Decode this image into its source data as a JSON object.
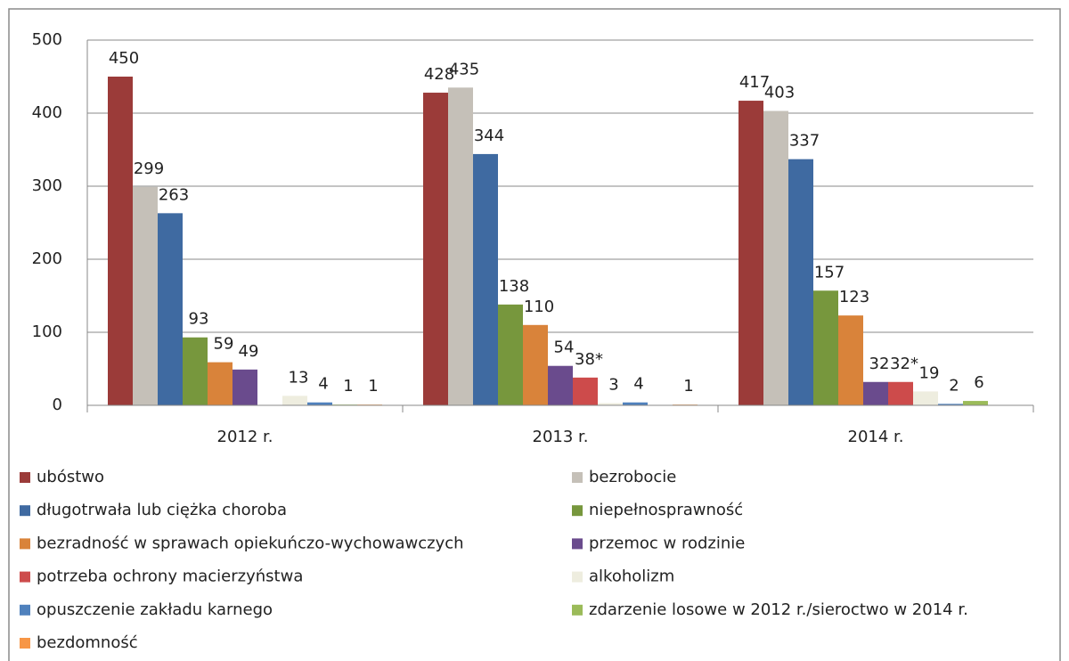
{
  "chart_data": {
    "type": "bar",
    "categories": [
      "2012 r.",
      "2013 r.",
      "2014 r."
    ],
    "series": [
      {
        "name": "ubóstwo",
        "color": "#9b3b39",
        "values": [
          450,
          428,
          417
        ]
      },
      {
        "name": "bezrobocie",
        "color": "#c5c0b8",
        "values": [
          299,
          435,
          403
        ]
      },
      {
        "name": "długotrwała lub ciężka choroba",
        "color": "#3f6aa1",
        "values": [
          263,
          344,
          337
        ]
      },
      {
        "name": "niepełnosprawność",
        "color": "#77973d",
        "values": [
          93,
          138,
          157
        ]
      },
      {
        "name": "bezradność w sprawach opiekuńczo-wychowawczych",
        "color": "#d9833a",
        "values": [
          59,
          110,
          123
        ]
      },
      {
        "name": "przemoc w rodzinie",
        "color": "#6a4b8d",
        "values": [
          49,
          54,
          32
        ]
      },
      {
        "name": "potrzeba ochrony macierzyństwa",
        "color": "#cd4b4b",
        "values": [
          null,
          38,
          32
        ],
        "value_labels": [
          null,
          "38*",
          "32*"
        ]
      },
      {
        "name": "alkoholizm",
        "color": "#eeeddf",
        "values": [
          13,
          3,
          19
        ]
      },
      {
        "name": "opuszczenie zakładu karnego",
        "color": "#4f81bd",
        "values": [
          4,
          4,
          2
        ]
      },
      {
        "name": "zdarzenie losowe w 2012 r./sieroctwo w 2014 r.",
        "color": "#9bbb59",
        "values": [
          1,
          null,
          6
        ]
      },
      {
        "name": "bezdomność",
        "color": "#f79646",
        "values": [
          1,
          1,
          null
        ]
      }
    ],
    "ylim": [
      0,
      500
    ],
    "yticks": [
      0,
      100,
      200,
      300,
      400,
      500
    ],
    "grid": true
  }
}
